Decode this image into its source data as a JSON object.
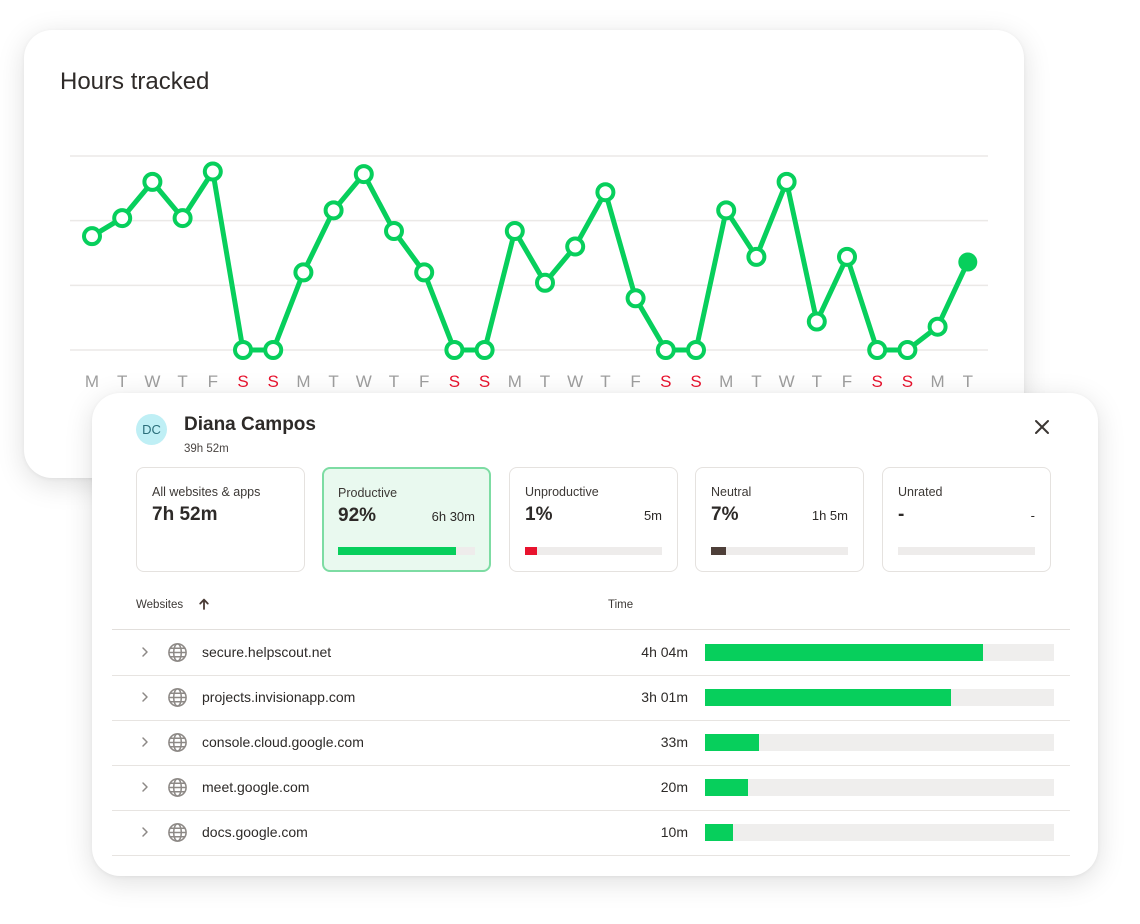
{
  "chart": {
    "title": "Hours tracked",
    "line_color": "#07cf5c",
    "weekday_color": "#9e9e9e",
    "weekend_color": "#e8132e"
  },
  "chart_data": {
    "type": "line",
    "categories": [
      "M",
      "T",
      "W",
      "T",
      "F",
      "S",
      "S",
      "M",
      "T",
      "W",
      "T",
      "F",
      "S",
      "S",
      "M",
      "T",
      "W",
      "T",
      "F",
      "S",
      "S",
      "M",
      "T",
      "W",
      "T",
      "F",
      "S",
      "S",
      "M",
      "T"
    ],
    "weekend": [
      false,
      false,
      false,
      false,
      false,
      true,
      true,
      false,
      false,
      false,
      false,
      false,
      true,
      true,
      false,
      false,
      false,
      false,
      false,
      true,
      true,
      false,
      false,
      false,
      false,
      false,
      true,
      true,
      false,
      false
    ],
    "values": [
      4.4,
      5.1,
      6.5,
      5.1,
      6.9,
      0,
      0,
      3.0,
      5.4,
      6.8,
      4.6,
      3.0,
      0,
      0,
      4.6,
      2.6,
      4.0,
      6.1,
      2.0,
      0,
      0,
      5.4,
      3.6,
      6.5,
      1.1,
      3.6,
      0,
      0,
      0.9,
      3.4
    ],
    "ylim": [
      0,
      7.5
    ],
    "gridlines": 4,
    "last_point_current": true
  },
  "user": {
    "initials": "DC",
    "name": "Diana Campos",
    "total": "39h 52m"
  },
  "stats": [
    {
      "label": "All websites & apps",
      "value": "7h 52m",
      "time": "",
      "share": null,
      "color": ""
    },
    {
      "label": "Productive",
      "value": "92%",
      "time": "6h 30m",
      "share": 0.86,
      "color": "#07cf5c"
    },
    {
      "label": "Unproductive",
      "value": "1%",
      "time": "5m",
      "share": 0.09,
      "color": "#e8132e"
    },
    {
      "label": "Neutral",
      "value": "7%",
      "time": "1h 5m",
      "share": 0.11,
      "color": "#4e3f39"
    },
    {
      "label": "Unrated",
      "value": "-",
      "time": "-",
      "share": 0,
      "color": "#cccccc"
    }
  ],
  "table": {
    "col_websites": "Websites",
    "col_time": "Time",
    "rows": [
      {
        "site": "secure.helpscout.net",
        "time": "4h 04m",
        "share": 0.797
      },
      {
        "site": "projects.invisionapp.com",
        "time": "3h 01m",
        "share": 0.705
      },
      {
        "site": "console.cloud.google.com",
        "time": "33m",
        "share": 0.155
      },
      {
        "site": "meet.google.com",
        "time": "20m",
        "share": 0.123
      },
      {
        "site": "docs.google.com",
        "time": "10m",
        "share": 0.08
      }
    ]
  }
}
